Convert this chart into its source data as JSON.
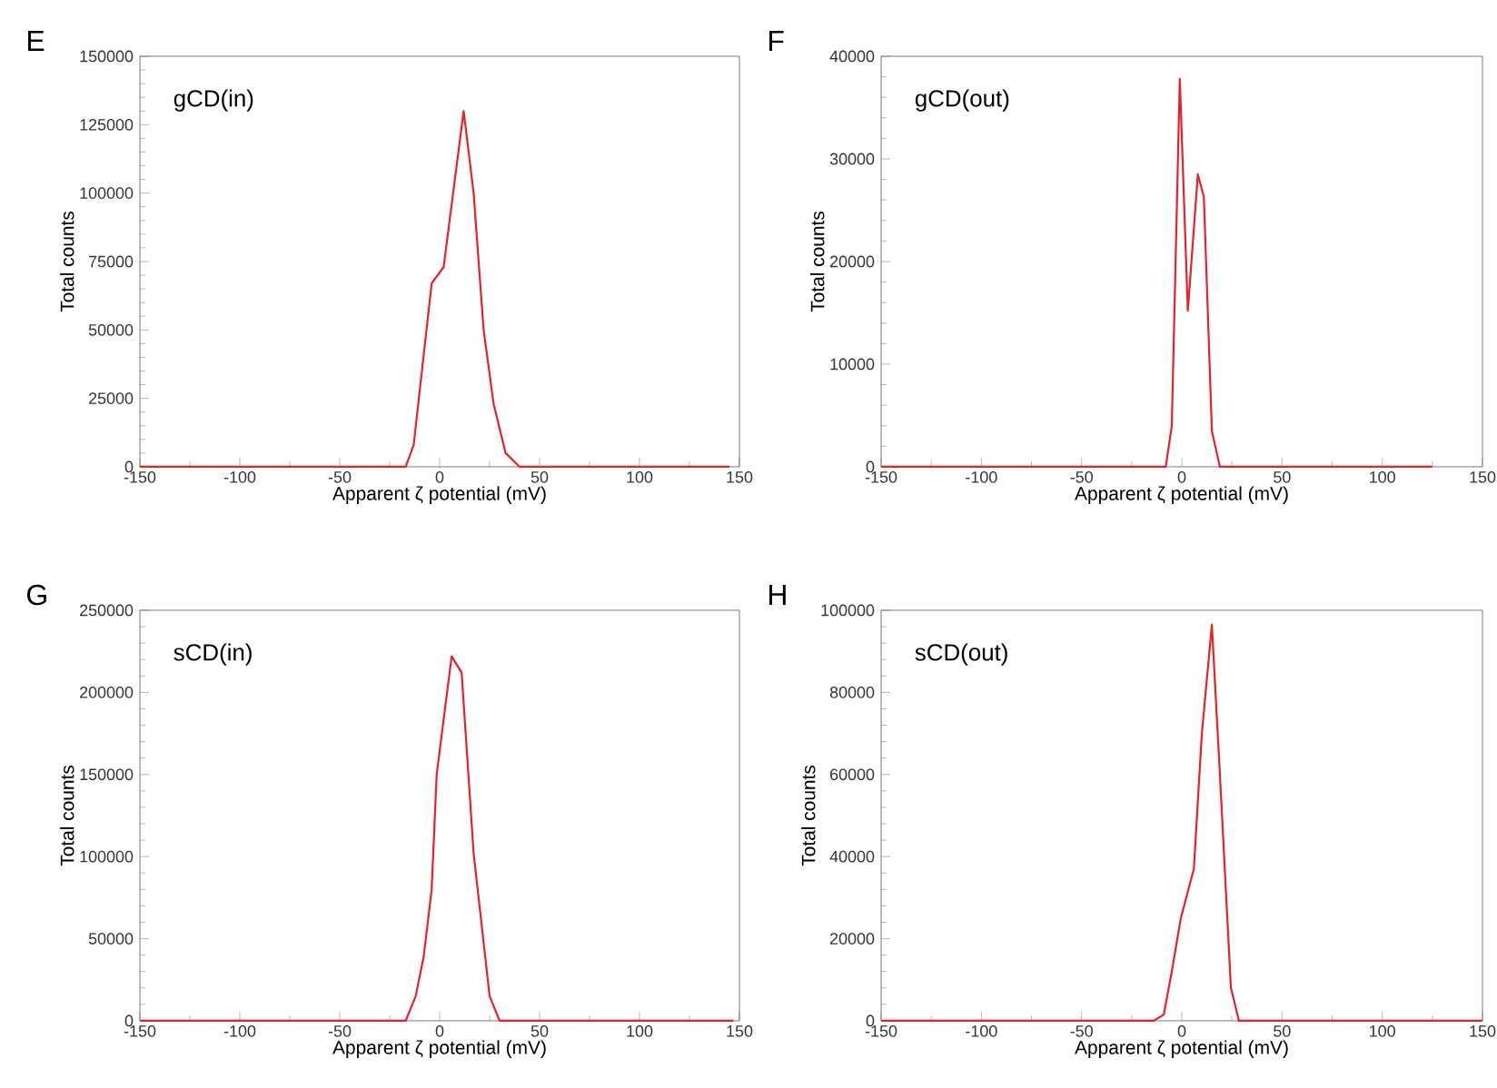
{
  "chart_data": [
    {
      "type": "line",
      "title": "gCD(in)",
      "annotations": [
        "E"
      ],
      "xlabel": "Apparent ζ potential (mV)",
      "ylabel": "Total counts",
      "color": "#e8222a",
      "xlim": [
        -150,
        150
      ],
      "xticks": [
        -150,
        -100,
        -50,
        0,
        50,
        100,
        150
      ],
      "ylim": [
        0,
        150000
      ],
      "yticks": [
        0,
        25000,
        50000,
        75000,
        100000,
        125000,
        150000
      ],
      "x": [
        -150,
        -17,
        -13,
        -4,
        2,
        12,
        17,
        22,
        27,
        33,
        40,
        145
      ],
      "values": [
        0,
        0,
        8000,
        67000,
        73000,
        130000,
        100000,
        50000,
        23000,
        5000,
        0,
        0
      ]
    },
    {
      "type": "line",
      "title": "gCD(out)",
      "annotations": [
        "F"
      ],
      "xlabel": "Apparent ζ potential (mV)",
      "ylabel": "Total counts",
      "color": "#e8222a",
      "xlim": [
        -150,
        150
      ],
      "xticks": [
        -150,
        -100,
        -50,
        0,
        50,
        100,
        150
      ],
      "ylim": [
        0,
        40000
      ],
      "yticks": [
        0,
        10000,
        20000,
        30000,
        40000
      ],
      "x": [
        -150,
        -8,
        -5,
        -1,
        3,
        8,
        11,
        15,
        19,
        125
      ],
      "values": [
        0,
        0,
        4000,
        37800,
        15200,
        28500,
        26300,
        3500,
        0,
        0
      ]
    },
    {
      "type": "line",
      "title": "sCD(in)",
      "annotations": [
        "G"
      ],
      "xlabel": "Apparent ζ potential (mV)",
      "ylabel": "Total counts",
      "color": "#e8222a",
      "xlim": [
        -150,
        150
      ],
      "xticks": [
        -150,
        -100,
        -50,
        0,
        50,
        100,
        150
      ],
      "ylim": [
        0,
        250000
      ],
      "yticks": [
        0,
        50000,
        100000,
        150000,
        200000,
        250000
      ],
      "x": [
        -150,
        -17,
        -12,
        -8,
        -4,
        -1.5,
        6,
        11,
        17,
        25,
        30,
        147
      ],
      "values": [
        0,
        0,
        15000,
        39000,
        80000,
        150000,
        222000,
        212000,
        102000,
        15000,
        0,
        0
      ]
    },
    {
      "type": "line",
      "title": "sCD(out)",
      "annotations": [
        "H"
      ],
      "xlabel": "Apparent ζ potential (mV)",
      "ylabel": "Total counts",
      "color": "#e8222a",
      "xlim": [
        -150,
        150
      ],
      "xticks": [
        -150,
        -100,
        -50,
        0,
        50,
        100,
        150
      ],
      "ylim": [
        0,
        100000
      ],
      "yticks": [
        0,
        20000,
        40000,
        60000,
        80000,
        100000
      ],
      "x": [
        -150,
        -14,
        -9,
        -5,
        -0.5,
        6,
        10,
        15,
        19,
        24.5,
        28.5,
        150
      ],
      "values": [
        0,
        0,
        1500,
        12000,
        25000,
        37000,
        70000,
        96500,
        60000,
        8000,
        0,
        0
      ]
    }
  ]
}
